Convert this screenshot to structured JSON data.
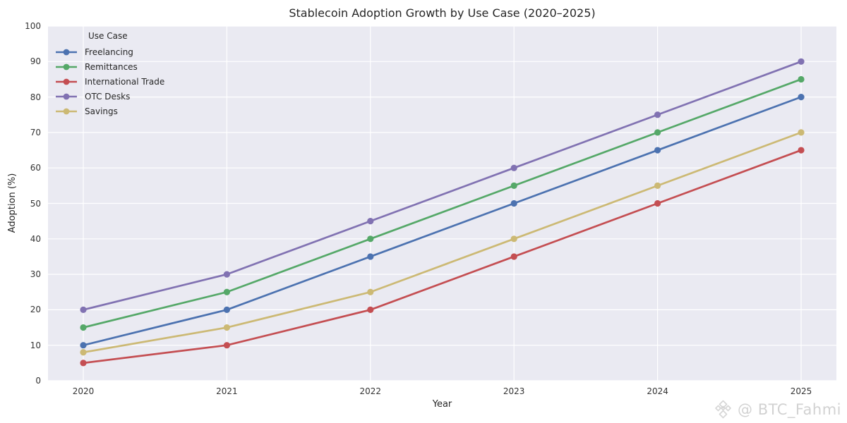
{
  "title": "Stablecoin Adoption Growth by Use Case (2020–2025)",
  "watermark": {
    "handle": "@ BTC_Fahmi",
    "logo": "binance-logo"
  },
  "chart_data": {
    "type": "line",
    "title": "Stablecoin Adoption Growth by Use Case (2020–2025)",
    "xlabel": "Year",
    "ylabel": "Adoption (%)",
    "x": [
      2020,
      2021,
      2022,
      2023,
      2024,
      2025
    ],
    "series": [
      {
        "name": "Freelancing",
        "color": "#4C72B0",
        "values": [
          10,
          20,
          35,
          50,
          65,
          80
        ]
      },
      {
        "name": "Remittances",
        "color": "#55A868",
        "values": [
          15,
          25,
          40,
          55,
          70,
          85
        ]
      },
      {
        "name": "International Trade",
        "color": "#C44E52",
        "values": [
          5,
          10,
          20,
          35,
          50,
          65
        ]
      },
      {
        "name": "OTC Desks",
        "color": "#8172B2",
        "values": [
          20,
          30,
          45,
          60,
          75,
          90
        ]
      },
      {
        "name": "Savings",
        "color": "#CCB974",
        "values": [
          8,
          15,
          25,
          40,
          55,
          70
        ]
      }
    ],
    "ylim": [
      0,
      100
    ],
    "yticks": [
      0,
      10,
      20,
      30,
      40,
      50,
      60,
      70,
      80,
      90,
      100
    ],
    "legend_title": "Use Case",
    "legend_position": "upper-left",
    "grid": true,
    "plot_bg": "#EAEAF2",
    "grid_color": "#FFFFFF"
  }
}
